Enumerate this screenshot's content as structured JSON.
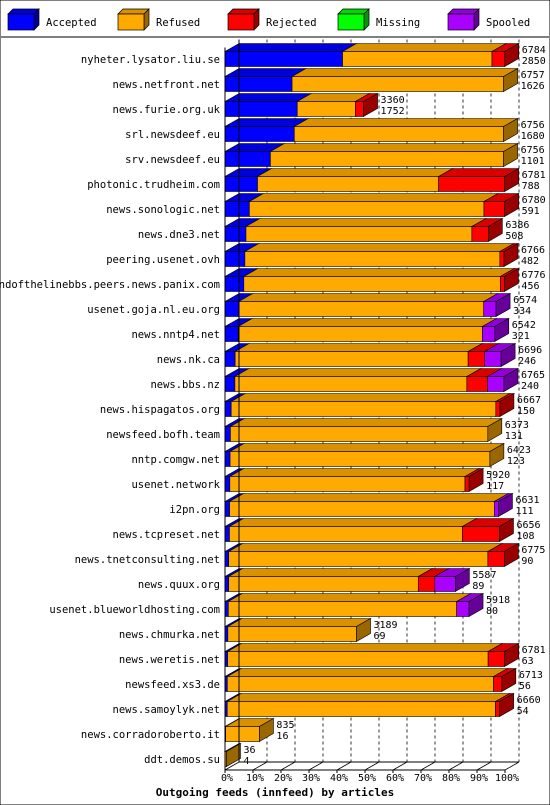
{
  "chart_data": {
    "type": "bar",
    "orientation": "horizontal",
    "stacked": true,
    "three_d": true,
    "title": "Outgoing feeds (innfeed) by articles",
    "xlabel": "",
    "ylabel": "",
    "xlim": [
      0,
      100
    ],
    "x_ticks": [
      "0%",
      "10%",
      "20%",
      "30%",
      "40%",
      "50%",
      "60%",
      "70%",
      "80%",
      "90%",
      "100%"
    ],
    "grid": "vertical dashed",
    "legend_position": "top",
    "legend": [
      {
        "key": "accepted",
        "label": "Accepted",
        "color": "#0000ff"
      },
      {
        "key": "refused",
        "label": "Refused",
        "color": "#ffaa00"
      },
      {
        "key": "rejected",
        "label": "Rejected",
        "color": "#ff0000"
      },
      {
        "key": "missing",
        "label": "Missing",
        "color": "#00ff00"
      },
      {
        "key": "spooled",
        "label": "Spooled",
        "color": "#aa00ff"
      }
    ],
    "scale_max": 6790,
    "rows": [
      {
        "name": "nyheter.lysator.liu.se",
        "total": "6784",
        "accepted_count": "2850",
        "accepted": 2850,
        "refused": 3624,
        "rejected": 310,
        "missing": 0,
        "spooled": 0
      },
      {
        "name": "news.netfront.net",
        "total": "6757",
        "accepted_count": "1626",
        "accepted": 1626,
        "refused": 5131,
        "rejected": 0,
        "missing": 0,
        "spooled": 0
      },
      {
        "name": "news.furie.org.uk",
        "total": "3360",
        "accepted_count": "1752",
        "accepted": 1752,
        "refused": 1408,
        "rejected": 200,
        "missing": 0,
        "spooled": 0
      },
      {
        "name": "srl.newsdeef.eu",
        "total": "6756",
        "accepted_count": "1680",
        "accepted": 1680,
        "refused": 5076,
        "rejected": 0,
        "missing": 0,
        "spooled": 0
      },
      {
        "name": "srv.newsdeef.eu",
        "total": "6756",
        "accepted_count": "1101",
        "accepted": 1101,
        "refused": 5655,
        "rejected": 0,
        "missing": 0,
        "spooled": 0
      },
      {
        "name": "photonic.trudheim.com",
        "total": "6781",
        "accepted_count": "788",
        "accepted": 788,
        "refused": 4393,
        "rejected": 1600,
        "missing": 0,
        "spooled": 0
      },
      {
        "name": "news.sonologic.net",
        "total": "6780",
        "accepted_count": "591",
        "accepted": 591,
        "refused": 5689,
        "rejected": 500,
        "missing": 0,
        "spooled": 0
      },
      {
        "name": "news.dne3.net",
        "total": "6386",
        "accepted_count": "508",
        "accepted": 508,
        "refused": 5478,
        "rejected": 400,
        "missing": 0,
        "spooled": 0
      },
      {
        "name": "peering.usenet.ovh",
        "total": "6766",
        "accepted_count": "482",
        "accepted": 482,
        "refused": 6184,
        "rejected": 100,
        "missing": 0,
        "spooled": 0
      },
      {
        "name": "endofthelinebbs.peers.news.panix.com",
        "total": "6776",
        "accepted_count": "456",
        "accepted": 456,
        "refused": 6220,
        "rejected": 100,
        "missing": 0,
        "spooled": 0
      },
      {
        "name": "usenet.goja.nl.eu.org",
        "total": "6574",
        "accepted_count": "334",
        "accepted": 334,
        "refused": 5940,
        "rejected": 0,
        "missing": 0,
        "spooled": 300
      },
      {
        "name": "news.nntp4.net",
        "total": "6542",
        "accepted_count": "321",
        "accepted": 321,
        "refused": 5921,
        "rejected": 0,
        "missing": 0,
        "spooled": 300
      },
      {
        "name": "news.nk.ca",
        "total": "6696",
        "accepted_count": "246",
        "accepted": 246,
        "refused": 5650,
        "rejected": 400,
        "missing": 0,
        "spooled": 400
      },
      {
        "name": "news.bbs.nz",
        "total": "6765",
        "accepted_count": "240",
        "accepted": 240,
        "refused": 5625,
        "rejected": 500,
        "missing": 0,
        "spooled": 400
      },
      {
        "name": "news.hispagatos.org",
        "total": "6667",
        "accepted_count": "150",
        "accepted": 150,
        "refused": 6417,
        "rejected": 100,
        "missing": 0,
        "spooled": 0
      },
      {
        "name": "newsfeed.bofh.team",
        "total": "6373",
        "accepted_count": "131",
        "accepted": 131,
        "refused": 6242,
        "rejected": 0,
        "missing": 0,
        "spooled": 0
      },
      {
        "name": "nntp.comgw.net",
        "total": "6423",
        "accepted_count": "123",
        "accepted": 123,
        "refused": 6300,
        "rejected": 0,
        "missing": 0,
        "spooled": 0
      },
      {
        "name": "usenet.network",
        "total": "5920",
        "accepted_count": "117",
        "accepted": 117,
        "refused": 5703,
        "rejected": 100,
        "missing": 0,
        "spooled": 0
      },
      {
        "name": "i2pn.org",
        "total": "6631",
        "accepted_count": "111",
        "accepted": 111,
        "refused": 6420,
        "rejected": 0,
        "missing": 0,
        "spooled": 100
      },
      {
        "name": "news.tcpreset.net",
        "total": "6656",
        "accepted_count": "108",
        "accepted": 108,
        "refused": 5648,
        "rejected": 900,
        "missing": 0,
        "spooled": 0
      },
      {
        "name": "news.tnetconsulting.net",
        "total": "6775",
        "accepted_count": "90",
        "accepted": 90,
        "refused": 6285,
        "rejected": 400,
        "missing": 0,
        "spooled": 0
      },
      {
        "name": "news.quux.org",
        "total": "5587",
        "accepted_count": "89",
        "accepted": 89,
        "refused": 4598,
        "rejected": 400,
        "missing": 0,
        "spooled": 500
      },
      {
        "name": "usenet.blueworldhosting.com",
        "total": "5918",
        "accepted_count": "80",
        "accepted": 80,
        "refused": 5538,
        "rejected": 0,
        "missing": 0,
        "spooled": 300
      },
      {
        "name": "news.chmurka.net",
        "total": "3189",
        "accepted_count": "69",
        "accepted": 69,
        "refused": 3120,
        "rejected": 0,
        "missing": 0,
        "spooled": 0
      },
      {
        "name": "news.weretis.net",
        "total": "6781",
        "accepted_count": "63",
        "accepted": 63,
        "refused": 6318,
        "rejected": 400,
        "missing": 0,
        "spooled": 0
      },
      {
        "name": "newsfeed.xs3.de",
        "total": "6713",
        "accepted_count": "56",
        "accepted": 56,
        "refused": 6457,
        "rejected": 200,
        "missing": 0,
        "spooled": 0
      },
      {
        "name": "news.samoylyk.net",
        "total": "6660",
        "accepted_count": "54",
        "accepted": 54,
        "refused": 6506,
        "rejected": 100,
        "missing": 0,
        "spooled": 0
      },
      {
        "name": "news.corradoroberto.it",
        "total": "835",
        "accepted_count": "16",
        "accepted": 16,
        "refused": 819,
        "rejected": 0,
        "missing": 0,
        "spooled": 0
      },
      {
        "name": "ddt.demos.su",
        "total": "36",
        "accepted_count": "4",
        "accepted": 4,
        "refused": 32,
        "rejected": 0,
        "missing": 0,
        "spooled": 0
      }
    ]
  }
}
